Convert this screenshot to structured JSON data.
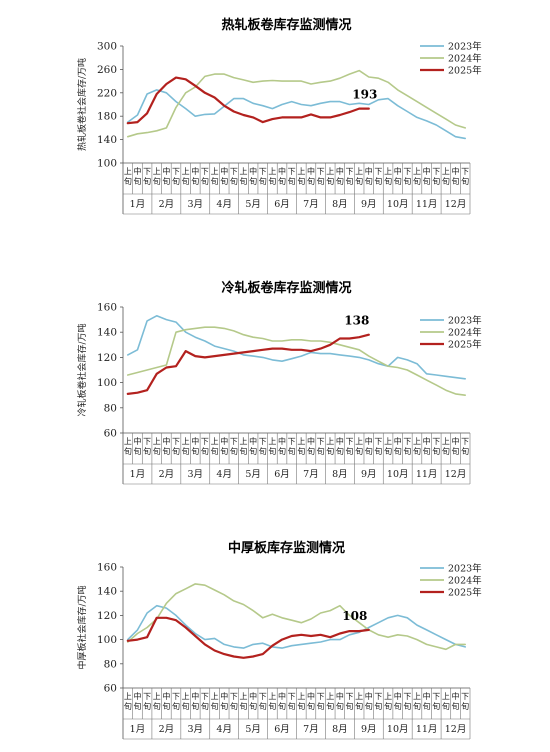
{
  "colors": {
    "s2023": "#7cbcd6",
    "s2024": "#b5c98a",
    "s2025": "#b3211e"
  },
  "x_sub_labels": [
    "上旬",
    "中旬",
    "下旬"
  ],
  "months": [
    "1月",
    "2月",
    "3月",
    "4月",
    "5月",
    "6月",
    "7月",
    "8月",
    "9月",
    "10月",
    "11月",
    "12月"
  ],
  "chart_data": [
    {
      "type": "line",
      "title": "热轧板卷库存监测情况",
      "ylabel": "热轧板卷社会库存/万吨",
      "ylim": [
        100,
        300
      ],
      "yticks": [
        100,
        140,
        180,
        220,
        260,
        300
      ],
      "legend_position": "top-right",
      "annotation": "193",
      "series": [
        {
          "name": "2023年",
          "key": "s2023",
          "values": [
            170,
            182,
            218,
            225,
            220,
            205,
            193,
            180,
            183,
            184,
            197,
            210,
            210,
            202,
            198,
            193,
            200,
            205,
            200,
            198,
            202,
            205,
            205,
            200,
            202,
            200,
            208,
            210,
            198,
            188,
            178,
            172,
            165,
            155,
            145,
            142
          ]
        },
        {
          "name": "2024年",
          "key": "s2024",
          "values": [
            145,
            150,
            152,
            155,
            160,
            195,
            220,
            230,
            248,
            252,
            252,
            246,
            242,
            238,
            240,
            241,
            240,
            240,
            240,
            235,
            238,
            240,
            245,
            252,
            258,
            247,
            245,
            238,
            225,
            215,
            205,
            195,
            185,
            175,
            165,
            160
          ]
        },
        {
          "name": "2025年",
          "key": "s2025",
          "values": [
            168,
            170,
            185,
            218,
            235,
            246,
            243,
            232,
            220,
            212,
            198,
            188,
            182,
            178,
            170,
            175,
            178,
            178,
            178,
            183,
            178,
            178,
            182,
            187,
            193,
            193
          ]
        }
      ]
    },
    {
      "type": "line",
      "title": "冷轧板卷库存监测情况",
      "ylabel": "冷轧板卷社会库存/万吨",
      "ylim": [
        60,
        160
      ],
      "yticks": [
        60,
        80,
        100,
        120,
        140,
        160
      ],
      "legend_position": "top-right",
      "annotation": "138",
      "series": [
        {
          "name": "2023年",
          "key": "s2023",
          "values": [
            122,
            126,
            149,
            153,
            150,
            148,
            140,
            136,
            133,
            129,
            127,
            125,
            122,
            121,
            120,
            118,
            117,
            119,
            121,
            124,
            123,
            123,
            122,
            121,
            120,
            118,
            115,
            113,
            120,
            118,
            115,
            107,
            106,
            105,
            104,
            103
          ]
        },
        {
          "name": "2024年",
          "key": "s2024",
          "values": [
            106,
            108,
            110,
            112,
            114,
            140,
            142,
            143,
            144,
            144,
            143,
            141,
            138,
            136,
            135,
            133,
            133,
            134,
            134,
            133,
            133,
            132,
            130,
            128,
            126,
            121,
            117,
            113,
            112,
            110,
            106,
            102,
            98,
            94,
            91,
            90
          ]
        },
        {
          "name": "2025年",
          "key": "s2025",
          "values": [
            91,
            92,
            94,
            107,
            112,
            113,
            125,
            121,
            120,
            121,
            122,
            123,
            124,
            125,
            126,
            127,
            127,
            126,
            126,
            125,
            127,
            130,
            135,
            135,
            136,
            138
          ]
        }
      ]
    },
    {
      "type": "line",
      "title": "中厚板库存监测情况",
      "ylabel": "中厚板社会库存/万吨",
      "ylim": [
        60,
        160
      ],
      "yticks": [
        60,
        80,
        100,
        120,
        140,
        160
      ],
      "legend_position": "top-right",
      "annotation": "108",
      "series": [
        {
          "name": "2023年",
          "key": "s2023",
          "values": [
            100,
            108,
            122,
            128,
            126,
            120,
            112,
            105,
            100,
            101,
            96,
            94,
            93,
            96,
            97,
            94,
            93,
            95,
            96,
            97,
            98,
            100,
            100,
            104,
            106,
            110,
            114,
            118,
            120,
            118,
            112,
            108,
            104,
            100,
            96,
            94
          ]
        },
        {
          "name": "2024年",
          "key": "s2024",
          "values": [
            98,
            105,
            110,
            117,
            130,
            138,
            142,
            146,
            145,
            141,
            137,
            132,
            129,
            124,
            118,
            121,
            118,
            116,
            114,
            117,
            122,
            124,
            128,
            120,
            114,
            108,
            104,
            102,
            104,
            103,
            100,
            96,
            94,
            92,
            96,
            96
          ]
        },
        {
          "name": "2025年",
          "key": "s2025",
          "values": [
            99,
            100,
            102,
            118,
            118,
            116,
            110,
            103,
            96,
            91,
            88,
            86,
            85,
            86,
            88,
            95,
            100,
            103,
            104,
            103,
            104,
            102,
            105,
            107,
            107,
            108
          ]
        }
      ]
    }
  ]
}
